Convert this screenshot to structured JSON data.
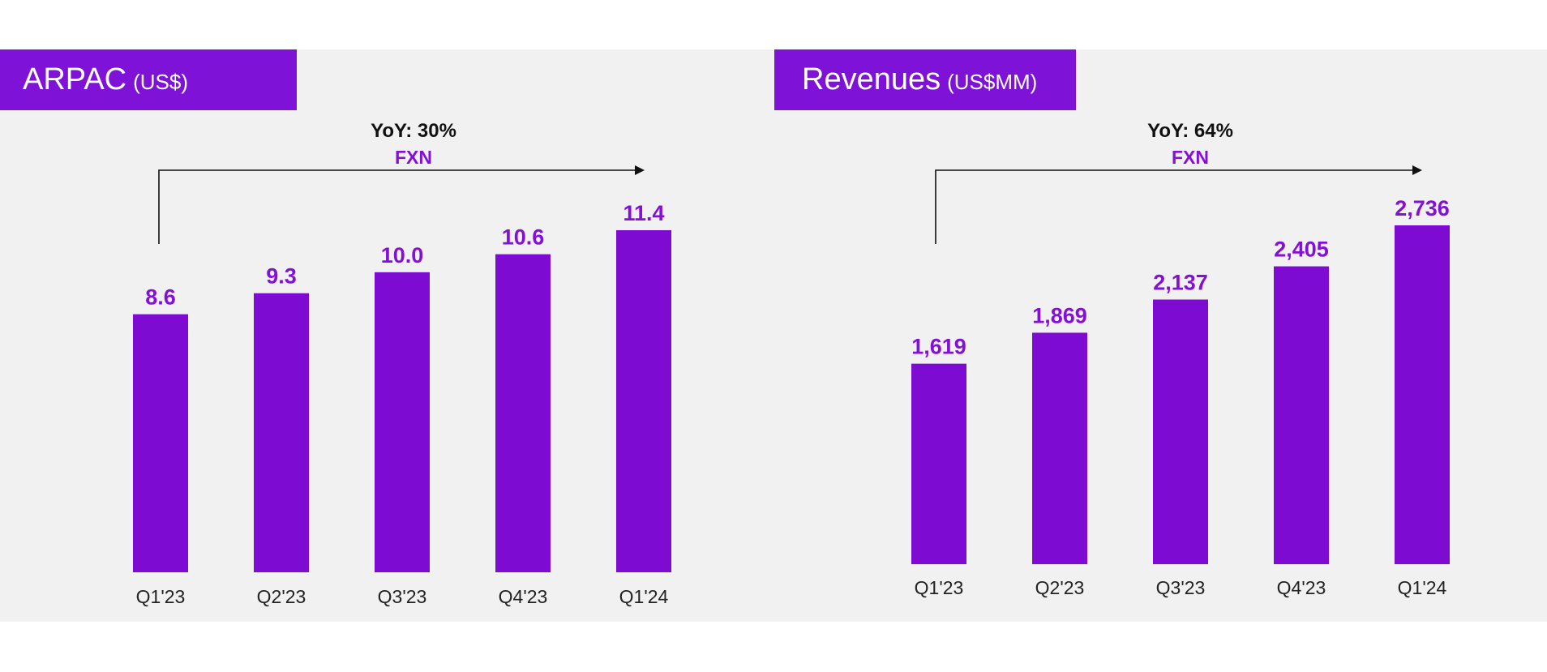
{
  "colors": {
    "accent": "#7e12d6",
    "bar": "#7e0bd1",
    "panel_bg": "#f1f1f1",
    "label_purple": "#8410d6"
  },
  "panels": [
    {
      "title": "ARPAC",
      "unit": "(US$)",
      "yoy": "YoY: 30%",
      "fxn": "FXN"
    },
    {
      "title": "Revenues",
      "unit": "(US$MM)",
      "yoy": "YoY: 64%",
      "fxn": "FXN"
    }
  ],
  "chart_data": [
    {
      "type": "bar",
      "title": "ARPAC (US$)",
      "categories": [
        "Q1'23",
        "Q2'23",
        "Q3'23",
        "Q4'23",
        "Q1'24"
      ],
      "values": [
        8.6,
        9.3,
        10.0,
        10.6,
        11.4
      ],
      "value_labels": [
        "8.6",
        "9.3",
        "10.0",
        "10.6",
        "11.4"
      ],
      "annotation": "YoY: 30% FXN",
      "grid": false,
      "legend": "none"
    },
    {
      "type": "bar",
      "title": "Revenues (US$MM)",
      "categories": [
        "Q1'23",
        "Q2'23",
        "Q3'23",
        "Q4'23",
        "Q1'24"
      ],
      "values": [
        1619,
        1869,
        2137,
        2405,
        2736
      ],
      "value_labels": [
        "1,619",
        "1,869",
        "2,137",
        "2,405",
        "2,736"
      ],
      "annotation": "YoY: 64% FXN",
      "grid": false,
      "legend": "none"
    }
  ]
}
